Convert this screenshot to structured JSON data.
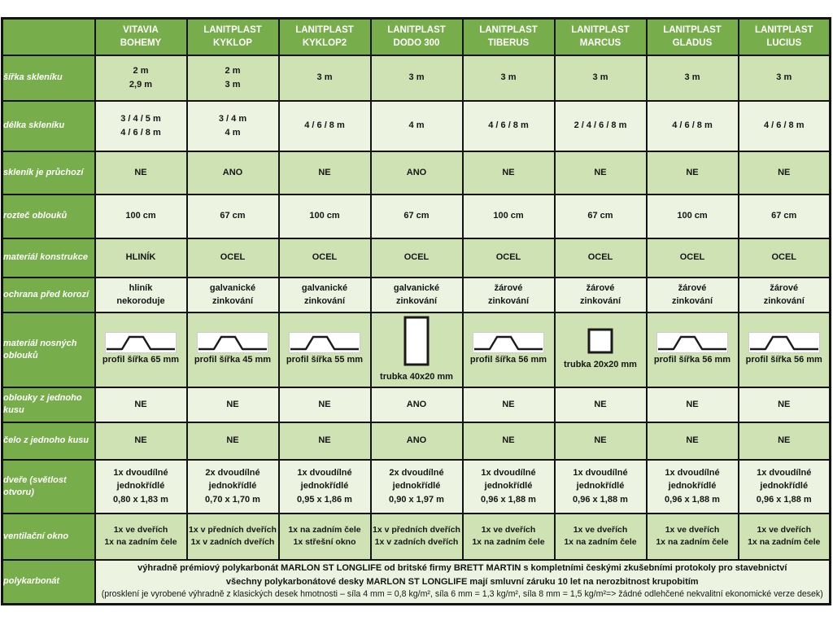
{
  "colors": {
    "header_green": "#77ad4a",
    "row_light": "#cfe2b4",
    "row_pale": "#ecf3e0",
    "border": "#141414",
    "header_text": "#ffffff",
    "cell_text": "#161616"
  },
  "header": {
    "corner": "",
    "columns": [
      {
        "brand": "VITAVIA",
        "model": "BOHEMY"
      },
      {
        "brand": "LANITPLAST",
        "model": "KYKLOP"
      },
      {
        "brand": "LANITPLAST",
        "model": "KYKLOP2"
      },
      {
        "brand": "LANITPLAST",
        "model": "DODO 300"
      },
      {
        "brand": "LANITPLAST",
        "model": "TIBERUS"
      },
      {
        "brand": "LANITPLAST",
        "model": "MARCUS"
      },
      {
        "brand": "LANITPLAST",
        "model": "GLADUS"
      },
      {
        "brand": "LANITPLAST",
        "model": "LUCIUS"
      }
    ]
  },
  "rows": [
    {
      "id": "sirka-skleniku",
      "type": "text",
      "spread": true,
      "label": "šířka skleníku",
      "cells": [
        [
          "2 m",
          "2,9 m"
        ],
        [
          "2 m",
          "3 m"
        ],
        [
          "3 m"
        ],
        [
          "3 m"
        ],
        [
          "3 m"
        ],
        [
          "3 m"
        ],
        [
          "3 m"
        ],
        [
          "3 m"
        ]
      ]
    },
    {
      "id": "delka-skleniku",
      "type": "text",
      "spread": true,
      "label": "délka skleníku",
      "cells": [
        [
          "3 / 4 / 5 m",
          "4 / 6 / 8 m"
        ],
        [
          "3 / 4 m",
          "4 m"
        ],
        [
          "4 / 6 / 8 m"
        ],
        [
          "4 m"
        ],
        [
          "4 / 6 / 8 m"
        ],
        [
          "2 / 4 / 6 / 8 m"
        ],
        [
          "4 / 6 / 8 m"
        ],
        [
          "4 / 6 / 8 m"
        ]
      ]
    },
    {
      "id": "sklenik-je-pruchozi",
      "type": "text",
      "spread": false,
      "label": "skleník je průchozí",
      "cells": [
        [
          "NE"
        ],
        [
          "ANO"
        ],
        [
          "NE"
        ],
        [
          "ANO"
        ],
        [
          "NE"
        ],
        [
          "NE"
        ],
        [
          "NE"
        ],
        [
          "NE"
        ]
      ]
    },
    {
      "id": "roztec-oblouku",
      "type": "text",
      "spread": false,
      "label": "rozteč oblouků",
      "cells": [
        [
          "100 cm"
        ],
        [
          "67 cm"
        ],
        [
          "100 cm"
        ],
        [
          "67 cm"
        ],
        [
          "100 cm"
        ],
        [
          "67 cm"
        ],
        [
          "100 cm"
        ],
        [
          "67 cm"
        ]
      ]
    },
    {
      "id": "material-konstrukce",
      "type": "text",
      "spread": false,
      "label": "materiál konstrukce",
      "cells": [
        [
          "HLINÍK"
        ],
        [
          "OCEL"
        ],
        [
          "OCEL"
        ],
        [
          "OCEL"
        ],
        [
          "OCEL"
        ],
        [
          "OCEL"
        ],
        [
          "OCEL"
        ],
        [
          "OCEL"
        ]
      ]
    },
    {
      "id": "ochrana-pred-korozi",
      "type": "text",
      "spread": false,
      "label": "ochrana před korozí",
      "cells": [
        [
          "hliník",
          "nekoroduje"
        ],
        [
          "galvanické",
          "zinkování"
        ],
        [
          "galvanické",
          "zinkování"
        ],
        [
          "galvanické",
          "zinkování"
        ],
        [
          "žárové",
          "zinkování"
        ],
        [
          "žárové",
          "zinkování"
        ],
        [
          "žárové",
          "zinkování"
        ],
        [
          "žárové",
          "zinkování"
        ]
      ]
    },
    {
      "id": "material-nosnych-oblouku",
      "type": "profile",
      "label": "materiál nosných oblouků",
      "cells": [
        {
          "icon": "hat",
          "caption": "profil šířka 65 mm"
        },
        {
          "icon": "hat",
          "caption": "profil šířka 45 mm"
        },
        {
          "icon": "hat",
          "caption": "profil šířka 55 mm"
        },
        {
          "icon": "tube-tall",
          "caption": "trubka 40x20 mm"
        },
        {
          "icon": "hat",
          "caption": "profil šířka 56 mm"
        },
        {
          "icon": "tube-square",
          "caption": "trubka 20x20 mm"
        },
        {
          "icon": "hat",
          "caption": "profil šířka 56 mm"
        },
        {
          "icon": "hat",
          "caption": "profil šířka 56 mm"
        }
      ]
    },
    {
      "id": "oblouky-z-jednoho-kusu",
      "type": "text",
      "spread": false,
      "label": "oblouky z jednoho kusu",
      "cells": [
        [
          "NE"
        ],
        [
          "NE"
        ],
        [
          "NE"
        ],
        [
          "ANO"
        ],
        [
          "NE"
        ],
        [
          "NE"
        ],
        [
          "NE"
        ],
        [
          "NE"
        ]
      ]
    },
    {
      "id": "celo-z-jednoho-kusu",
      "type": "text",
      "spread": false,
      "label": "čelo z jednoho kusu",
      "cells": [
        [
          "NE"
        ],
        [
          "NE"
        ],
        [
          "NE"
        ],
        [
          "ANO"
        ],
        [
          "NE"
        ],
        [
          "NE"
        ],
        [
          "NE"
        ],
        [
          "NE"
        ]
      ]
    },
    {
      "id": "dvere-svetlost-otvoru",
      "type": "text",
      "spread": false,
      "label": "dveře (světlost otvoru)",
      "cells": [
        [
          "1x dvoudílné",
          "jednokřídlé",
          "0,80 x 1,83 m"
        ],
        [
          "2x dvoudílné",
          "jednokřídlé",
          "0,70 x 1,70 m"
        ],
        [
          "1x dvoudílné",
          "jednokřídlé",
          "0,95 x 1,86 m"
        ],
        [
          "2x dvoudílné",
          "jednokřídlé",
          "0,90 x 1,97 m"
        ],
        [
          "1x dvoudílné",
          "jednokřídlé",
          "0,96 x 1,88 m"
        ],
        [
          "1x dvoudílné",
          "jednokřídlé",
          "0,96 x 1,88 m"
        ],
        [
          "1x dvoudílné",
          "jednokřídlé",
          "0,96 x 1,88 m"
        ],
        [
          "1x dvoudílné",
          "jednokřídlé",
          "0,96 x 1,88 m"
        ]
      ]
    },
    {
      "id": "ventilacni-okno",
      "type": "text",
      "spread": false,
      "tight": true,
      "label": "ventilační okno",
      "cells": [
        [
          "1x ve dveřích",
          "1x na zadním čele"
        ],
        [
          "1x v předních dveřích",
          "1x v zadních dveřích"
        ],
        [
          "1x na zadním čele",
          "1x střešní okno"
        ],
        [
          "1x v předních dveřích",
          "1x v zadních dveřích"
        ],
        [
          "1x ve dveřích",
          "1x na zadním čele"
        ],
        [
          "1x ve dveřích",
          "1x na zadním čele"
        ],
        [
          "1x ve dveřích",
          "1x na zadním čele"
        ],
        [
          "1x ve dveřích",
          "1x na zadním čele"
        ]
      ]
    },
    {
      "id": "polykarbonat",
      "type": "merged",
      "label": "polykarbonát",
      "lines": [
        {
          "text": "výhradně prémiový polykarbonát MARLON ST LONGLIFE od britské firmy BRETT MARTIN s kompletními českými zkušebními protokoly pro stavebnictví",
          "bold": true
        },
        {
          "text": "všechny polykarbonátové desky MARLON ST LONGLIFE mají smluvní záruku 10 let na nerozbitnost krupobitím",
          "bold": true
        },
        {
          "text": "(prosklení je vyrobené výhradně z klasických desek hmotnosti – síla 4 mm = 0,8 kg/m², síla 6 mm = 1,3 kg/m², síla 8 mm = 1,5 kg/m²=> žádné odlehčené nekvalitní ekonomické verze desek)",
          "bold": false
        }
      ]
    }
  ]
}
